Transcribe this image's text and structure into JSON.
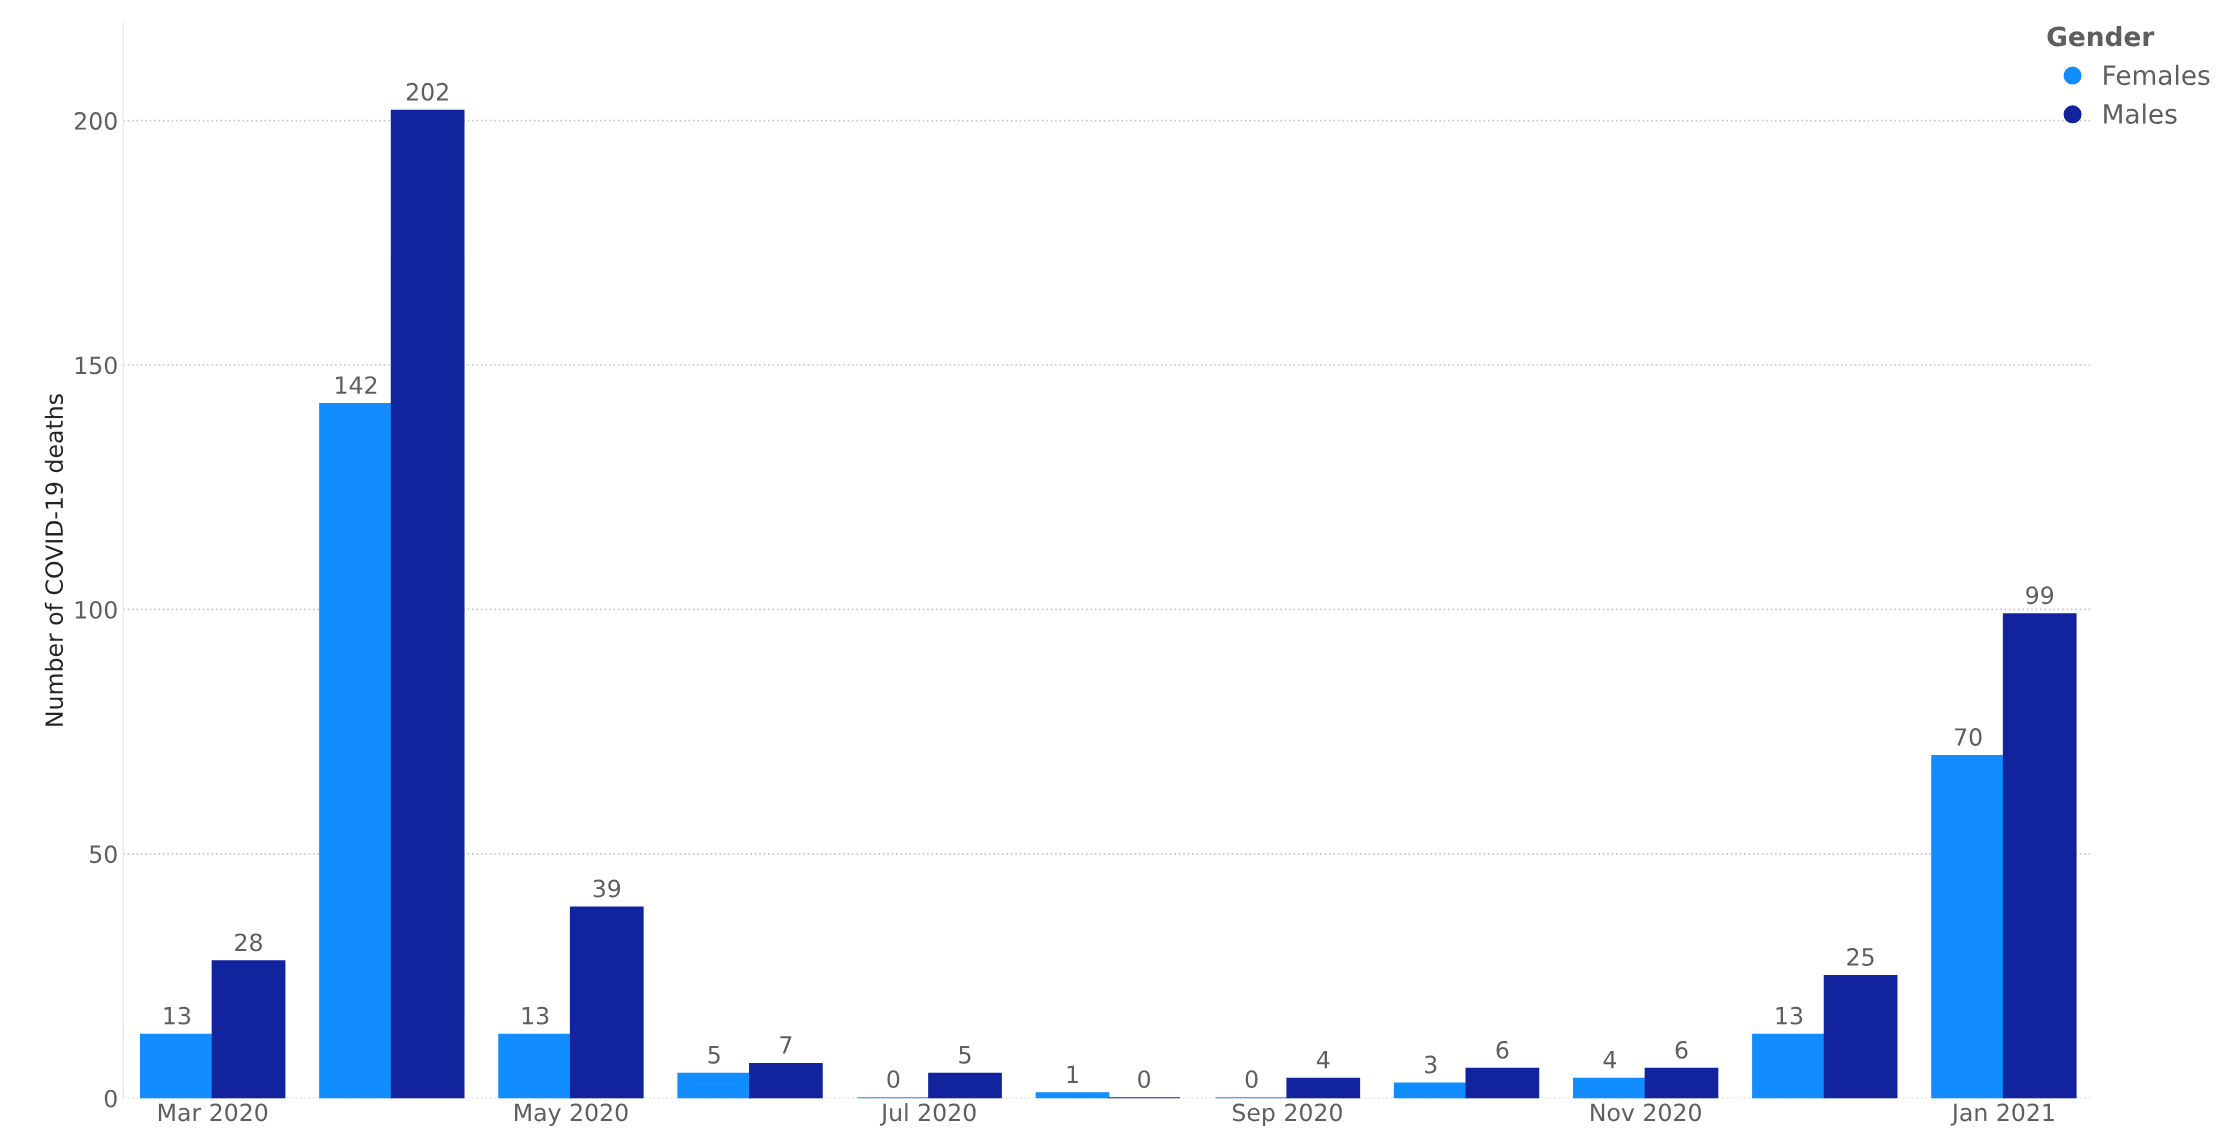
{
  "chart_data": {
    "type": "bar",
    "ylabel": "Number of COVID-19 deaths",
    "legend_title": "Gender",
    "categories": [
      "Mar 2020",
      null,
      "May 2020",
      null,
      "Jul 2020",
      null,
      "Sep 2020",
      null,
      "Nov 2020",
      null,
      "Jan 2021"
    ],
    "series": [
      {
        "name": "Females",
        "color": "#118dff",
        "values": [
          13,
          142,
          13,
          5,
          0,
          1,
          0,
          3,
          4,
          13,
          70
        ]
      },
      {
        "name": "Males",
        "color": "#12239e",
        "values": [
          28,
          202,
          39,
          7,
          5,
          0,
          4,
          6,
          6,
          25,
          99
        ]
      }
    ],
    "ylim": [
      0,
      220
    ],
    "yticks": [
      0,
      50,
      100,
      150,
      200
    ],
    "grid": "y",
    "legend": "top right",
    "data_labels": true
  }
}
